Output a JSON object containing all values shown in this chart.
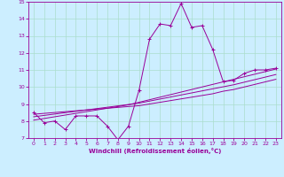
{
  "x_values": [
    0,
    1,
    2,
    3,
    4,
    5,
    6,
    7,
    8,
    9,
    10,
    11,
    12,
    13,
    14,
    15,
    16,
    17,
    18,
    19,
    20,
    21,
    22,
    23
  ],
  "y_main": [
    8.5,
    7.9,
    8.0,
    7.5,
    8.3,
    8.3,
    8.3,
    7.7,
    6.9,
    7.7,
    9.8,
    12.8,
    13.7,
    13.6,
    14.9,
    13.5,
    13.6,
    12.2,
    10.3,
    10.4,
    10.8,
    11.0,
    11.0,
    11.1
  ],
  "y_line1": [
    8.4,
    8.45,
    8.5,
    8.55,
    8.6,
    8.65,
    8.7,
    8.75,
    8.8,
    8.85,
    8.9,
    9.0,
    9.1,
    9.2,
    9.3,
    9.4,
    9.5,
    9.6,
    9.75,
    9.85,
    10.0,
    10.15,
    10.3,
    10.45
  ],
  "y_line2": [
    8.25,
    8.33,
    8.41,
    8.49,
    8.57,
    8.65,
    8.73,
    8.81,
    8.89,
    8.97,
    9.05,
    9.17,
    9.29,
    9.41,
    9.53,
    9.65,
    9.77,
    9.89,
    10.01,
    10.13,
    10.28,
    10.43,
    10.58,
    10.73
  ],
  "y_line3": [
    8.05,
    8.15,
    8.25,
    8.35,
    8.45,
    8.55,
    8.65,
    8.75,
    8.85,
    8.95,
    9.1,
    9.25,
    9.4,
    9.55,
    9.7,
    9.85,
    10.0,
    10.15,
    10.3,
    10.45,
    10.6,
    10.75,
    10.9,
    11.05
  ],
  "line_color": "#990099",
  "bg_color": "#cceeff",
  "grid_color": "#aaddcc",
  "xlabel": "Windchill (Refroidissement éolien,°C)",
  "ylim": [
    7,
    15
  ],
  "xlim_min": -0.5,
  "xlim_max": 23.5,
  "yticks": [
    7,
    8,
    9,
    10,
    11,
    12,
    13,
    14,
    15
  ],
  "xticks": [
    0,
    1,
    2,
    3,
    4,
    5,
    6,
    7,
    8,
    9,
    10,
    11,
    12,
    13,
    14,
    15,
    16,
    17,
    18,
    19,
    20,
    21,
    22,
    23
  ],
  "tick_fontsize": 4.5,
  "xlabel_fontsize": 5.0
}
